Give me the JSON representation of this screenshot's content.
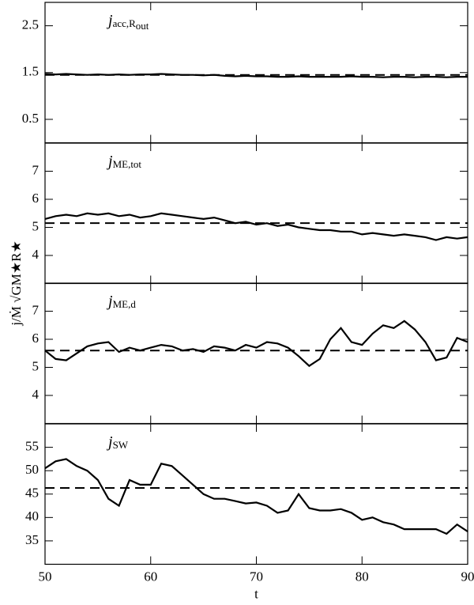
{
  "ylabel": "j/Ṁ √GM★R★",
  "chart_data": [
    {
      "type": "line",
      "label": "j",
      "label_sub": "acc,",
      "label_sub_italic": "R",
      "label_subsub": "out",
      "x": [
        50,
        51,
        52,
        53,
        54,
        55,
        56,
        57,
        58,
        59,
        60,
        61,
        62,
        63,
        64,
        65,
        66,
        67,
        68,
        69,
        70,
        71,
        72,
        73,
        74,
        75,
        76,
        77,
        78,
        79,
        80,
        81,
        82,
        83,
        84,
        85,
        86,
        87,
        88,
        89,
        90
      ],
      "values": [
        1.47,
        1.46,
        1.47,
        1.46,
        1.45,
        1.46,
        1.45,
        1.46,
        1.45,
        1.46,
        1.46,
        1.47,
        1.46,
        1.45,
        1.45,
        1.44,
        1.45,
        1.43,
        1.42,
        1.43,
        1.42,
        1.42,
        1.41,
        1.41,
        1.42,
        1.41,
        1.41,
        1.41,
        1.41,
        1.42,
        1.41,
        1.41,
        1.4,
        1.41,
        1.41,
        1.4,
        1.41,
        1.41,
        1.4,
        1.41,
        1.41
      ],
      "reference": 1.45,
      "color": "#000000",
      "xlim": [
        50,
        90
      ],
      "xticks": [
        50,
        60,
        70,
        80,
        90
      ],
      "ylim": [
        0,
        3
      ],
      "yticks": [
        0.5,
        1.5,
        2.5
      ]
    },
    {
      "type": "line",
      "label": "j",
      "label_sub": "ME,tot",
      "x": [
        50,
        51,
        52,
        53,
        54,
        55,
        56,
        57,
        58,
        59,
        60,
        61,
        62,
        63,
        64,
        65,
        66,
        67,
        68,
        69,
        70,
        71,
        72,
        73,
        74,
        75,
        76,
        77,
        78,
        79,
        80,
        81,
        82,
        83,
        84,
        85,
        86,
        87,
        88,
        89,
        90
      ],
      "values": [
        5.3,
        5.4,
        5.45,
        5.4,
        5.5,
        5.45,
        5.5,
        5.4,
        5.45,
        5.35,
        5.4,
        5.5,
        5.45,
        5.4,
        5.35,
        5.3,
        5.35,
        5.25,
        5.15,
        5.2,
        5.1,
        5.15,
        5.05,
        5.1,
        5.0,
        4.95,
        4.9,
        4.9,
        4.85,
        4.85,
        4.75,
        4.8,
        4.75,
        4.7,
        4.75,
        4.7,
        4.65,
        4.55,
        4.65,
        4.6,
        4.65
      ],
      "reference": 5.15,
      "color": "#000000",
      "xlim": [
        50,
        90
      ],
      "xticks": [
        50,
        60,
        70,
        80,
        90
      ],
      "ylim": [
        3,
        8
      ],
      "yticks": [
        4,
        5,
        6,
        7
      ]
    },
    {
      "type": "line",
      "label": "j",
      "label_sub": "ME,d",
      "x": [
        50,
        51,
        52,
        53,
        54,
        55,
        56,
        57,
        58,
        59,
        60,
        61,
        62,
        63,
        64,
        65,
        66,
        67,
        68,
        69,
        70,
        71,
        72,
        73,
        74,
        75,
        76,
        77,
        78,
        79,
        80,
        81,
        82,
        83,
        84,
        85,
        86,
        87,
        88,
        89,
        90
      ],
      "values": [
        5.6,
        5.3,
        5.25,
        5.5,
        5.75,
        5.85,
        5.9,
        5.55,
        5.7,
        5.6,
        5.7,
        5.8,
        5.75,
        5.6,
        5.65,
        5.55,
        5.75,
        5.7,
        5.6,
        5.8,
        5.7,
        5.9,
        5.85,
        5.7,
        5.4,
        5.05,
        5.3,
        6.0,
        6.4,
        5.9,
        5.8,
        6.2,
        6.5,
        6.4,
        6.65,
        6.35,
        5.9,
        5.25,
        5.35,
        6.05,
        5.9
      ],
      "reference": 5.6,
      "color": "#000000",
      "xlim": [
        50,
        90
      ],
      "xticks": [
        50,
        60,
        70,
        80,
        90
      ],
      "ylim": [
        3,
        8
      ],
      "yticks": [
        4,
        5,
        6,
        7
      ]
    },
    {
      "type": "line",
      "label": "j",
      "label_sub": "SW",
      "xlabel": "t",
      "x": [
        50,
        51,
        52,
        53,
        54,
        55,
        56,
        57,
        58,
        59,
        60,
        61,
        62,
        63,
        64,
        65,
        66,
        67,
        68,
        69,
        70,
        71,
        72,
        73,
        74,
        75,
        76,
        77,
        78,
        79,
        80,
        81,
        82,
        83,
        84,
        85,
        86,
        87,
        88,
        89,
        90
      ],
      "values": [
        50.5,
        52,
        52.5,
        51,
        50,
        48,
        44,
        42.5,
        48,
        47,
        47,
        51.5,
        51,
        49,
        47,
        45,
        44,
        44,
        43.5,
        43,
        43.2,
        42.5,
        41,
        41.5,
        45,
        42,
        41.5,
        41.5,
        41.8,
        41,
        39.5,
        40,
        39,
        38.5,
        37.5,
        37.5,
        37.5,
        37.5,
        36.5,
        38.5,
        37
      ],
      "reference": 46.3,
      "color": "#000000",
      "xlim": [
        50,
        90
      ],
      "xticks": [
        50,
        60,
        70,
        80,
        90
      ],
      "ylim": [
        30,
        60
      ],
      "yticks": [
        35,
        40,
        45,
        50,
        55
      ]
    }
  ]
}
